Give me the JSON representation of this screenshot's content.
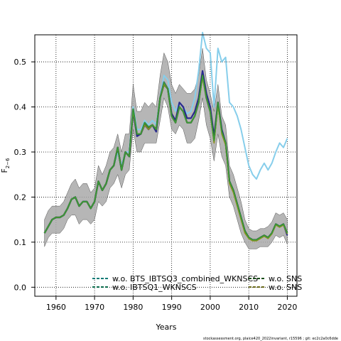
{
  "chart_data": {
    "type": "line",
    "title": "",
    "xlabel": "Years",
    "ylabel_main": "F",
    "ylabel_sub": "2−6",
    "xlim": [
      1954.5,
      2022.5
    ],
    "ylim": [
      -0.02,
      0.56
    ],
    "xticks": [
      1960,
      1970,
      1980,
      1990,
      2000,
      2010,
      2020
    ],
    "yticks": [
      0.0,
      0.1,
      0.2,
      0.3,
      0.4,
      0.5
    ],
    "ytick_labels": [
      "0.0",
      "0.1",
      "0.2",
      "0.3",
      "0.4",
      "0.5"
    ],
    "grid": true,
    "legend_position": "bottom",
    "x": [
      1957,
      1958,
      1959,
      1960,
      1961,
      1962,
      1963,
      1964,
      1965,
      1966,
      1967,
      1968,
      1969,
      1970,
      1971,
      1972,
      1973,
      1974,
      1975,
      1976,
      1977,
      1978,
      1979,
      1980,
      1981,
      1982,
      1983,
      1984,
      1985,
      1986,
      1987,
      1988,
      1989,
      1990,
      1991,
      1992,
      1993,
      1994,
      1995,
      1996,
      1997,
      1998,
      1999,
      2000,
      2001,
      2002,
      2003,
      2004,
      2005,
      2006,
      2007,
      2008,
      2009,
      2010,
      2011,
      2012,
      2013,
      2014,
      2015,
      2016,
      2017,
      2018,
      2019,
      2020
    ],
    "confidence_band": {
      "upper": [
        0.15,
        0.17,
        0.18,
        0.18,
        0.18,
        0.19,
        0.21,
        0.23,
        0.24,
        0.22,
        0.23,
        0.23,
        0.21,
        0.22,
        0.27,
        0.25,
        0.27,
        0.3,
        0.31,
        0.34,
        0.3,
        0.34,
        0.34,
        0.45,
        0.39,
        0.39,
        0.41,
        0.4,
        0.41,
        0.4,
        0.47,
        0.52,
        0.5,
        0.45,
        0.43,
        0.45,
        0.44,
        0.43,
        0.43,
        0.44,
        0.47,
        0.53,
        0.46,
        0.43,
        0.39,
        0.45,
        0.38,
        0.36,
        0.27,
        0.25,
        0.22,
        0.19,
        0.15,
        0.13,
        0.125,
        0.125,
        0.13,
        0.13,
        0.135,
        0.145,
        0.165,
        0.16,
        0.165,
        0.15
      ],
      "lower": [
        0.09,
        0.11,
        0.12,
        0.12,
        0.12,
        0.13,
        0.15,
        0.16,
        0.16,
        0.14,
        0.15,
        0.15,
        0.14,
        0.15,
        0.19,
        0.18,
        0.19,
        0.22,
        0.23,
        0.25,
        0.22,
        0.25,
        0.26,
        0.35,
        0.3,
        0.3,
        0.32,
        0.32,
        0.32,
        0.32,
        0.37,
        0.42,
        0.4,
        0.35,
        0.34,
        0.36,
        0.35,
        0.32,
        0.32,
        0.33,
        0.37,
        0.42,
        0.36,
        0.33,
        0.28,
        0.34,
        0.29,
        0.27,
        0.2,
        0.18,
        0.15,
        0.12,
        0.1,
        0.085,
        0.085,
        0.085,
        0.09,
        0.09,
        0.09,
        0.1,
        0.115,
        0.11,
        0.115,
        0.095
      ]
    },
    "series": [
      {
        "legend": "w.o. BTS_IBTSQ3_combined_WKNSCS",
        "color": "#87CEEB",
        "linestyle": "solid",
        "values": [
          0.12,
          0.135,
          0.15,
          0.155,
          0.155,
          0.16,
          0.175,
          0.195,
          0.2,
          0.18,
          0.19,
          0.19,
          0.175,
          0.19,
          0.235,
          0.215,
          0.23,
          0.26,
          0.27,
          0.3,
          0.27,
          0.3,
          0.3,
          0.4,
          0.35,
          0.35,
          0.37,
          0.36,
          0.37,
          0.36,
          0.42,
          0.47,
          0.46,
          0.41,
          0.39,
          0.41,
          0.4,
          0.385,
          0.39,
          0.42,
          0.48,
          0.565,
          0.53,
          0.52,
          0.4,
          0.53,
          0.5,
          0.51,
          0.41,
          0.4,
          0.38,
          0.35,
          0.31,
          0.27,
          0.25,
          0.24,
          0.26,
          0.275,
          0.26,
          0.275,
          0.3,
          0.32,
          0.31,
          0.33
        ]
      },
      {
        "legend": "w.o. IBTSQ1_WKNSCS",
        "color": "#2b2b8f",
        "linestyle": "solid",
        "values": [
          0.12,
          0.135,
          0.15,
          0.155,
          0.155,
          0.16,
          0.175,
          0.195,
          0.2,
          0.18,
          0.19,
          0.19,
          0.175,
          0.19,
          0.235,
          0.215,
          0.23,
          0.26,
          0.27,
          0.31,
          0.26,
          0.3,
          0.29,
          0.39,
          0.335,
          0.34,
          0.36,
          0.35,
          0.36,
          0.345,
          0.42,
          0.455,
          0.44,
          0.385,
          0.37,
          0.41,
          0.4,
          0.375,
          0.375,
          0.39,
          0.42,
          0.48,
          0.43,
          0.4,
          0.335,
          0.41,
          0.35,
          0.32,
          0.235,
          0.215,
          0.185,
          0.155,
          0.125,
          0.11,
          0.105,
          0.105,
          0.11,
          0.115,
          0.11,
          0.12,
          0.14,
          0.135,
          0.14,
          0.115
        ]
      },
      {
        "legend": "w.o. SNS",
        "color": "#1a4d1a",
        "linestyle": "solid",
        "values": [
          0.12,
          0.135,
          0.15,
          0.155,
          0.155,
          0.16,
          0.175,
          0.195,
          0.2,
          0.18,
          0.19,
          0.19,
          0.175,
          0.19,
          0.235,
          0.215,
          0.23,
          0.26,
          0.27,
          0.31,
          0.26,
          0.3,
          0.29,
          0.395,
          0.34,
          0.34,
          0.365,
          0.355,
          0.36,
          0.35,
          0.42,
          0.45,
          0.44,
          0.38,
          0.365,
          0.4,
          0.39,
          0.365,
          0.365,
          0.38,
          0.41,
          0.47,
          0.42,
          0.39,
          0.325,
          0.41,
          0.345,
          0.32,
          0.235,
          0.215,
          0.185,
          0.155,
          0.125,
          0.11,
          0.105,
          0.105,
          0.11,
          0.115,
          0.11,
          0.12,
          0.14,
          0.135,
          0.14,
          0.12
        ]
      },
      {
        "legend": "w.o. SNS",
        "color": "#8f8f1a",
        "linestyle": "solid",
        "values": [
          0.12,
          0.135,
          0.15,
          0.155,
          0.155,
          0.16,
          0.175,
          0.195,
          0.2,
          0.18,
          0.19,
          0.19,
          0.175,
          0.19,
          0.235,
          0.215,
          0.23,
          0.26,
          0.27,
          0.31,
          0.26,
          0.3,
          0.29,
          0.39,
          0.34,
          0.34,
          0.36,
          0.35,
          0.36,
          0.35,
          0.42,
          0.45,
          0.44,
          0.38,
          0.365,
          0.4,
          0.39,
          0.365,
          0.365,
          0.38,
          0.41,
          0.465,
          0.42,
          0.39,
          0.32,
          0.405,
          0.34,
          0.315,
          0.23,
          0.21,
          0.18,
          0.15,
          0.12,
          0.108,
          0.103,
          0.103,
          0.108,
          0.113,
          0.108,
          0.118,
          0.138,
          0.133,
          0.138,
          0.118
        ]
      },
      {
        "legend": "",
        "color": "#3a9a3a",
        "linestyle": "solid",
        "values": [
          0.12,
          0.135,
          0.15,
          0.155,
          0.155,
          0.16,
          0.175,
          0.195,
          0.2,
          0.18,
          0.19,
          0.19,
          0.175,
          0.19,
          0.235,
          0.215,
          0.23,
          0.26,
          0.27,
          0.31,
          0.26,
          0.3,
          0.29,
          0.395,
          0.34,
          0.34,
          0.365,
          0.355,
          0.36,
          0.35,
          0.42,
          0.455,
          0.44,
          0.38,
          0.365,
          0.4,
          0.39,
          0.365,
          0.365,
          0.38,
          0.41,
          0.47,
          0.42,
          0.39,
          0.325,
          0.41,
          0.345,
          0.32,
          0.235,
          0.215,
          0.185,
          0.155,
          0.125,
          0.11,
          0.105,
          0.105,
          0.11,
          0.115,
          0.11,
          0.12,
          0.14,
          0.135,
          0.14,
          0.12
        ]
      }
    ],
    "legend_entries": [
      {
        "label": "w.o. BTS_IBTSQ3_combined_WKNSCS",
        "color": "#0b7a75",
        "dash": true
      },
      {
        "label": "w.o. IBTSQ1_WKNSCS",
        "color": "#0b6b4b",
        "dash": true
      },
      {
        "label": "w.o. SNS",
        "color": "#1a4d1a",
        "dash": true
      },
      {
        "label": "w.o. SNS",
        "color": "#6b6b1a",
        "dash": true
      }
    ],
    "footer": "stockassessment.org, plaice420_2022invariant, r15596 ;  git: ec2c2a0c6dde"
  }
}
